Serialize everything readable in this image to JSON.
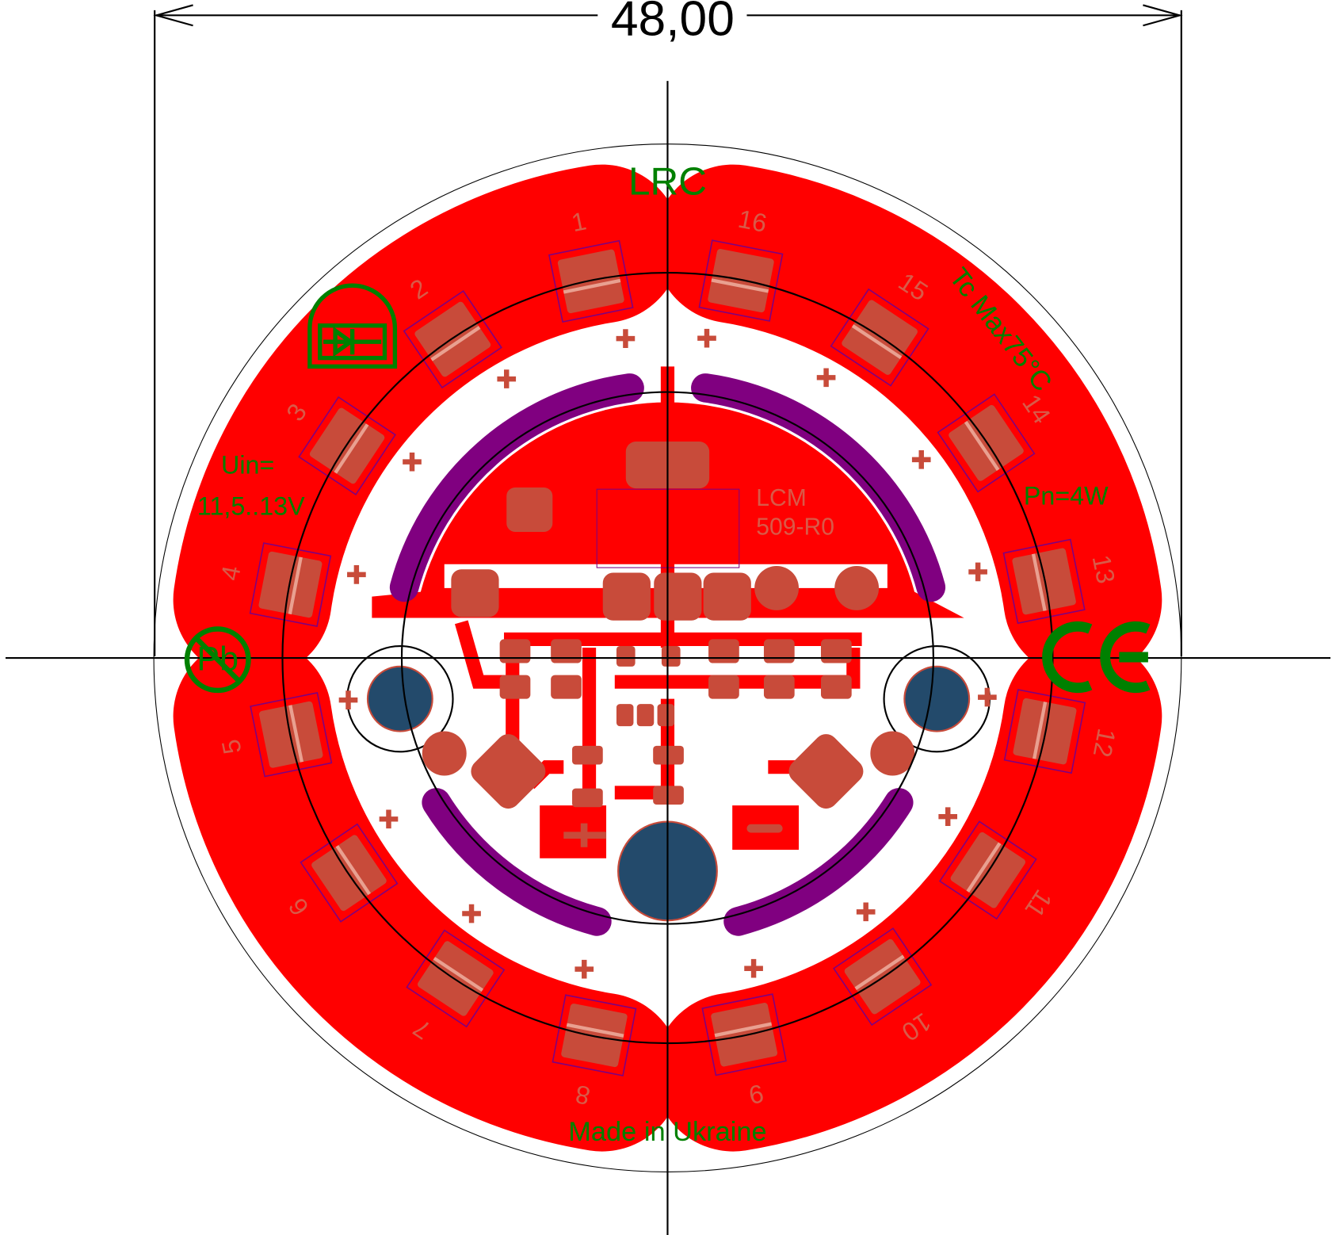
{
  "dimension": {
    "label": "48,00"
  },
  "silkscreen": {
    "logo": "LRC",
    "temperature": "Tc Max75°C",
    "voltage_label": "Uin=",
    "voltage_range": "11,5..13V",
    "power": "Pn=4W",
    "part_line1": "LCM",
    "part_line2": "509-R0",
    "origin": "Made in Ukraine",
    "lead_free": "Pb"
  },
  "leds": [
    {
      "label": "1"
    },
    {
      "label": "2"
    },
    {
      "label": "3"
    },
    {
      "label": "4"
    },
    {
      "label": "5"
    },
    {
      "label": "6"
    },
    {
      "label": "7"
    },
    {
      "label": "8"
    },
    {
      "label": "9"
    },
    {
      "label": "10"
    },
    {
      "label": "11"
    },
    {
      "label": "12"
    },
    {
      "label": "13"
    },
    {
      "label": "14"
    },
    {
      "label": "15"
    },
    {
      "label": "16"
    }
  ]
}
